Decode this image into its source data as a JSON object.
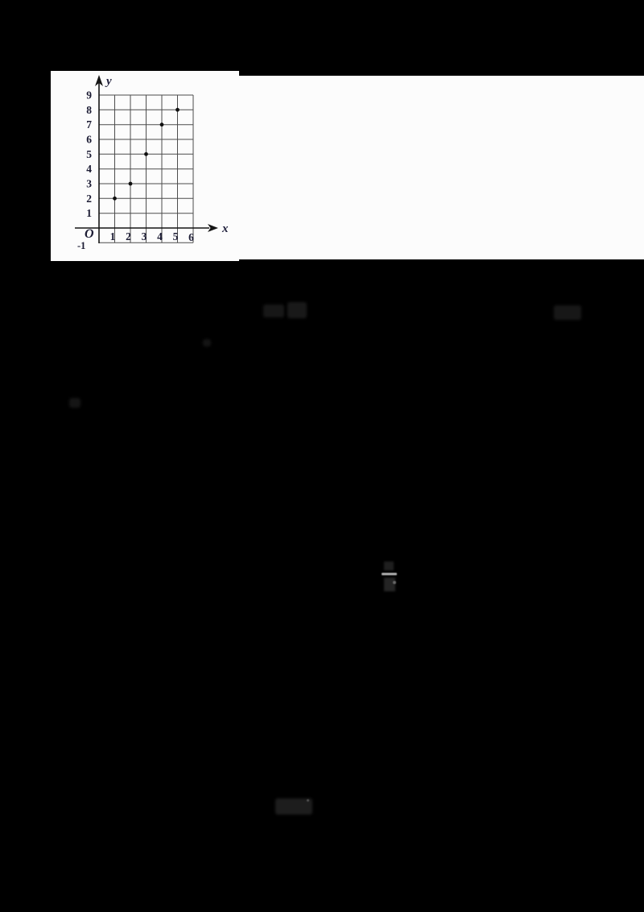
{
  "page": {
    "background_color": "#000000",
    "panel_color": "#fcfcfc",
    "description": "scanned worksheet page, mostly black, with white band containing a scatter plot"
  },
  "chart_data": {
    "type": "scatter",
    "title": "",
    "points": [
      {
        "x": 1,
        "y": 2
      },
      {
        "x": 2,
        "y": 3
      },
      {
        "x": 3,
        "y": 5
      },
      {
        "x": 4,
        "y": 7
      },
      {
        "x": 5,
        "y": 8
      }
    ],
    "x_ticks": [
      "1",
      "2",
      "3",
      "4",
      "5",
      "6"
    ],
    "y_ticks": [
      "9",
      "8",
      "7",
      "6",
      "5",
      "4",
      "3",
      "2",
      "1"
    ],
    "origin_label": "O",
    "below_origin_label": "-1",
    "xlabel": "x",
    "ylabel": "y",
    "xlim": [
      0,
      6
    ],
    "ylim": [
      -1,
      9
    ],
    "grid": true,
    "legend_position": "none",
    "point_color": "#101010",
    "grid_color": "#4d4d4d",
    "axis_color": "#151515"
  },
  "artifacts": {
    "note": "six faint unreadable dark-gray scan remnants on the black field; one resembles a fraction with a light horizontal bar",
    "count": 6
  }
}
